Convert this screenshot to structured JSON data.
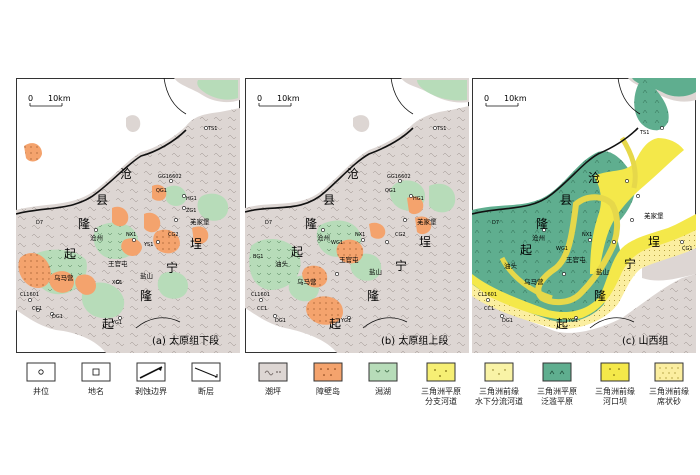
{
  "panels": [
    {
      "id": "a",
      "caption": "(a)  太原组下段"
    },
    {
      "id": "b",
      "caption": "(b)  太原组上段"
    },
    {
      "id": "c",
      "caption": "(c)  山西组"
    }
  ],
  "scale_bar": {
    "zero": "0",
    "length": "10km"
  },
  "region_labels": {
    "cang": "沧",
    "xian": "县",
    "long1": "隆",
    "qi1": "起",
    "bu": "埕",
    "ning": "宁",
    "long2": "隆",
    "qi2": "起"
  },
  "place_labels": {
    "cangzhou": "沧州",
    "wangguantun": "王官屯",
    "yanshan": "盐山",
    "wumatun": "乌马营",
    "kongjiapu": "羌家堡",
    "youtou": "油头"
  },
  "well_labels": {
    "gg16602": "GG16602",
    "qg1": "QG1",
    "hg1": "HG1",
    "d7": "D7",
    "cg2": "CG2",
    "zg1": "ZG1",
    "wg1": "WG1",
    "nx1": "NX1",
    "ys1": "YS1",
    "xg1": "XG1",
    "bg1": "BG1",
    "cg1": "CG1",
    "yg1": "YG1",
    "dg1": "DG1",
    "cc1": "CC1",
    "cl1": "CL1601",
    "ts1": "TS1"
  },
  "legend": [
    {
      "icon": "well-position-icon",
      "label": "井位"
    },
    {
      "icon": "place-name-icon",
      "label": "地名"
    },
    {
      "icon": "erosion-boundary-icon",
      "label": "剥蚀边界"
    },
    {
      "icon": "fault-icon",
      "label": "断层"
    },
    {
      "icon": "tidal-flat-icon",
      "label": "潮坪"
    },
    {
      "icon": "barrier-island-icon",
      "label": "障壁岛"
    },
    {
      "icon": "lagoon-icon",
      "label": "潟湖"
    },
    {
      "icon": "delta-plain-channel-icon",
      "label": "三角洲平原\n分支河道"
    },
    {
      "icon": "delta-front-channel-icon",
      "label": "三角洲前缘\n水下分流河道"
    },
    {
      "icon": "delta-plain-flood-icon",
      "label": "三角洲平原\n泛滥平原"
    },
    {
      "icon": "delta-front-mouthbar-icon",
      "label": "三角洲前缘\n河口坝"
    },
    {
      "icon": "delta-front-sheetsand-icon",
      "label": "三角洲前缘\n席状砂"
    }
  ],
  "colors": {
    "tidal_flat": "#ddd6d3",
    "barrier": "#f4a36d",
    "lagoon": "#b7dcb9",
    "delta_flood": "#5fae8f",
    "delta_channel": "#f6ef74",
    "mouth_bar": "#f4e84a",
    "sheet_sand": "#fbeea0"
  }
}
